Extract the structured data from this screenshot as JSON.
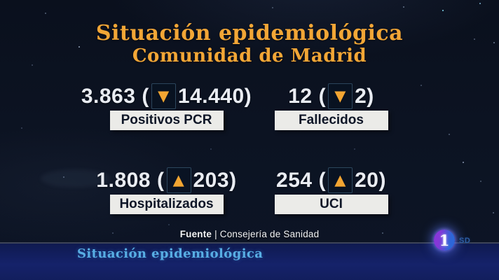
{
  "title": {
    "line1": "Situación epidemiológica",
    "line2": "Comunidad de Madrid"
  },
  "punct": {
    "open": "(",
    "close": ")"
  },
  "stats": [
    {
      "value": "3.863",
      "arrow": "▼",
      "direction": "down",
      "delta": "14.440",
      "label": "Positivos PCR"
    },
    {
      "value": "12",
      "arrow": "▼",
      "direction": "down",
      "delta": "2",
      "label": "Fallecidos"
    },
    {
      "value": "1.808",
      "arrow": "▲",
      "direction": "up",
      "delta": "203",
      "label": "Hospitalizados"
    },
    {
      "value": "254",
      "arrow": "▲",
      "direction": "up",
      "delta": "20",
      "label": "UCI"
    }
  ],
  "source": {
    "prefix": "Fuente",
    "separator": "|",
    "name": "Consejería de Sanidad"
  },
  "ticker": {
    "text": "Situación epidemiológica"
  },
  "channel": {
    "logo": "1",
    "badge": "SD"
  },
  "colors": {
    "accent_orange": "#f2a636",
    "arrow_orange": "#f2a532",
    "background_navy": "#0c1322",
    "label_box": "#ebebe8",
    "label_text": "#0e1627",
    "number_text": "#e9ecf2",
    "ticker_blue": "#58aee4",
    "bar_blue": "#15226a",
    "logo_purple": "#8637d8",
    "logo_blue": "#2e66d8"
  },
  "chart_data": {
    "type": "table",
    "title": "Situación epidemiológica",
    "subtitle": "Comunidad de Madrid",
    "categories": [
      "Positivos PCR",
      "Fallecidos",
      "Hospitalizados",
      "UCI"
    ],
    "values": [
      3863,
      12,
      1808,
      254
    ],
    "deltas": [
      -14440,
      -2,
      203,
      20
    ],
    "delta_directions": [
      "down",
      "down",
      "up",
      "up"
    ],
    "source": "Fuente | Consejería de Sanidad"
  }
}
